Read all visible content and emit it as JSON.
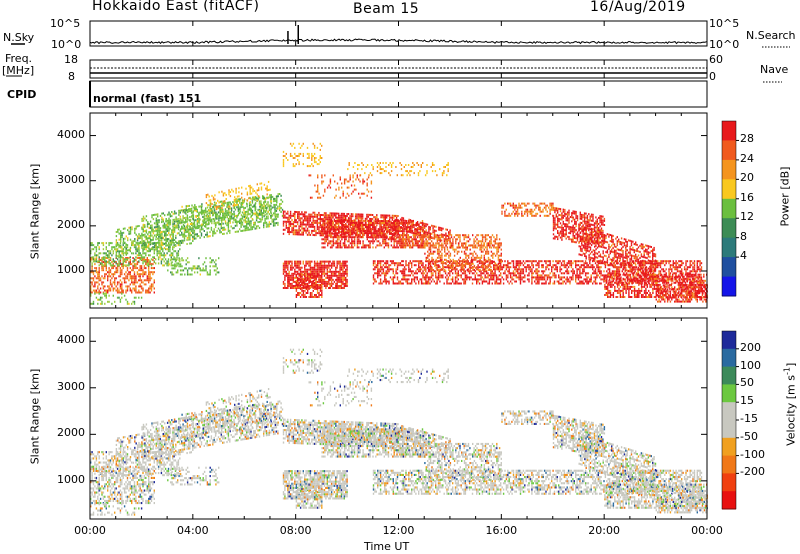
{
  "header": {
    "title": "Hokkaido East (fitACF)",
    "beam": "Beam 15",
    "date": "16/Aug/2019"
  },
  "top_panel": {
    "nsky_label": "N.Sky",
    "nsearch_label": "N.Search",
    "left_ticks": [
      "10^5",
      "10^0"
    ],
    "right_ticks": [
      "10^5",
      "10^0"
    ],
    "freq_label_1": "Freq.",
    "freq_label_2": "[MHz]",
    "freq_ticks": [
      "18",
      "8"
    ],
    "nave_label": "Nave",
    "nave_ticks": [
      "60",
      "0"
    ],
    "cpid_label": "CPID",
    "cpid_value": "normal (fast) 151"
  },
  "chart_data": [
    {
      "type": "heatmap",
      "name": "power",
      "ylabel": "Slant Range [km]",
      "yticks": [
        1000,
        2000,
        3000,
        4000
      ],
      "ylim": [
        180,
        4500
      ],
      "xlim": [
        0,
        24
      ],
      "colorbar_label": "Power [dB]",
      "colorbar_ticks": [
        "28",
        "24",
        "20",
        "16",
        "12",
        "8",
        "4"
      ],
      "colorbar_colors": [
        "#e8191c",
        "#f05a1e",
        "#f4941e",
        "#f9c81f",
        "#6bbf3f",
        "#3c8c55",
        "#2c7a7a",
        "#1f4f9f",
        "#1414e8"
      ]
    },
    {
      "type": "heatmap",
      "name": "velocity",
      "ylabel": "Slant Range [km]",
      "yticks": [
        1000,
        2000,
        3000,
        4000
      ],
      "ylim": [
        180,
        4500
      ],
      "xlim": [
        0,
        24
      ],
      "xlabel": "Time UT",
      "xticks": [
        "00:00",
        "04:00",
        "08:00",
        "12:00",
        "16:00",
        "20:00",
        "00:00"
      ],
      "colorbar_label": "Velocity [m s",
      "colorbar_label_sup": "-1",
      "colorbar_label_end": "]",
      "colorbar_ticks": [
        "200",
        "100",
        "50",
        "15",
        "-15",
        "-50",
        "-100",
        "-200"
      ],
      "colorbar_colors": [
        "#1e2a9a",
        "#2a6aa0",
        "#3c8a5a",
        "#6cc840",
        "#c8c8c0",
        "#c8c8c0",
        "#f0a020",
        "#f07818",
        "#f04010",
        "#e81010"
      ]
    }
  ]
}
